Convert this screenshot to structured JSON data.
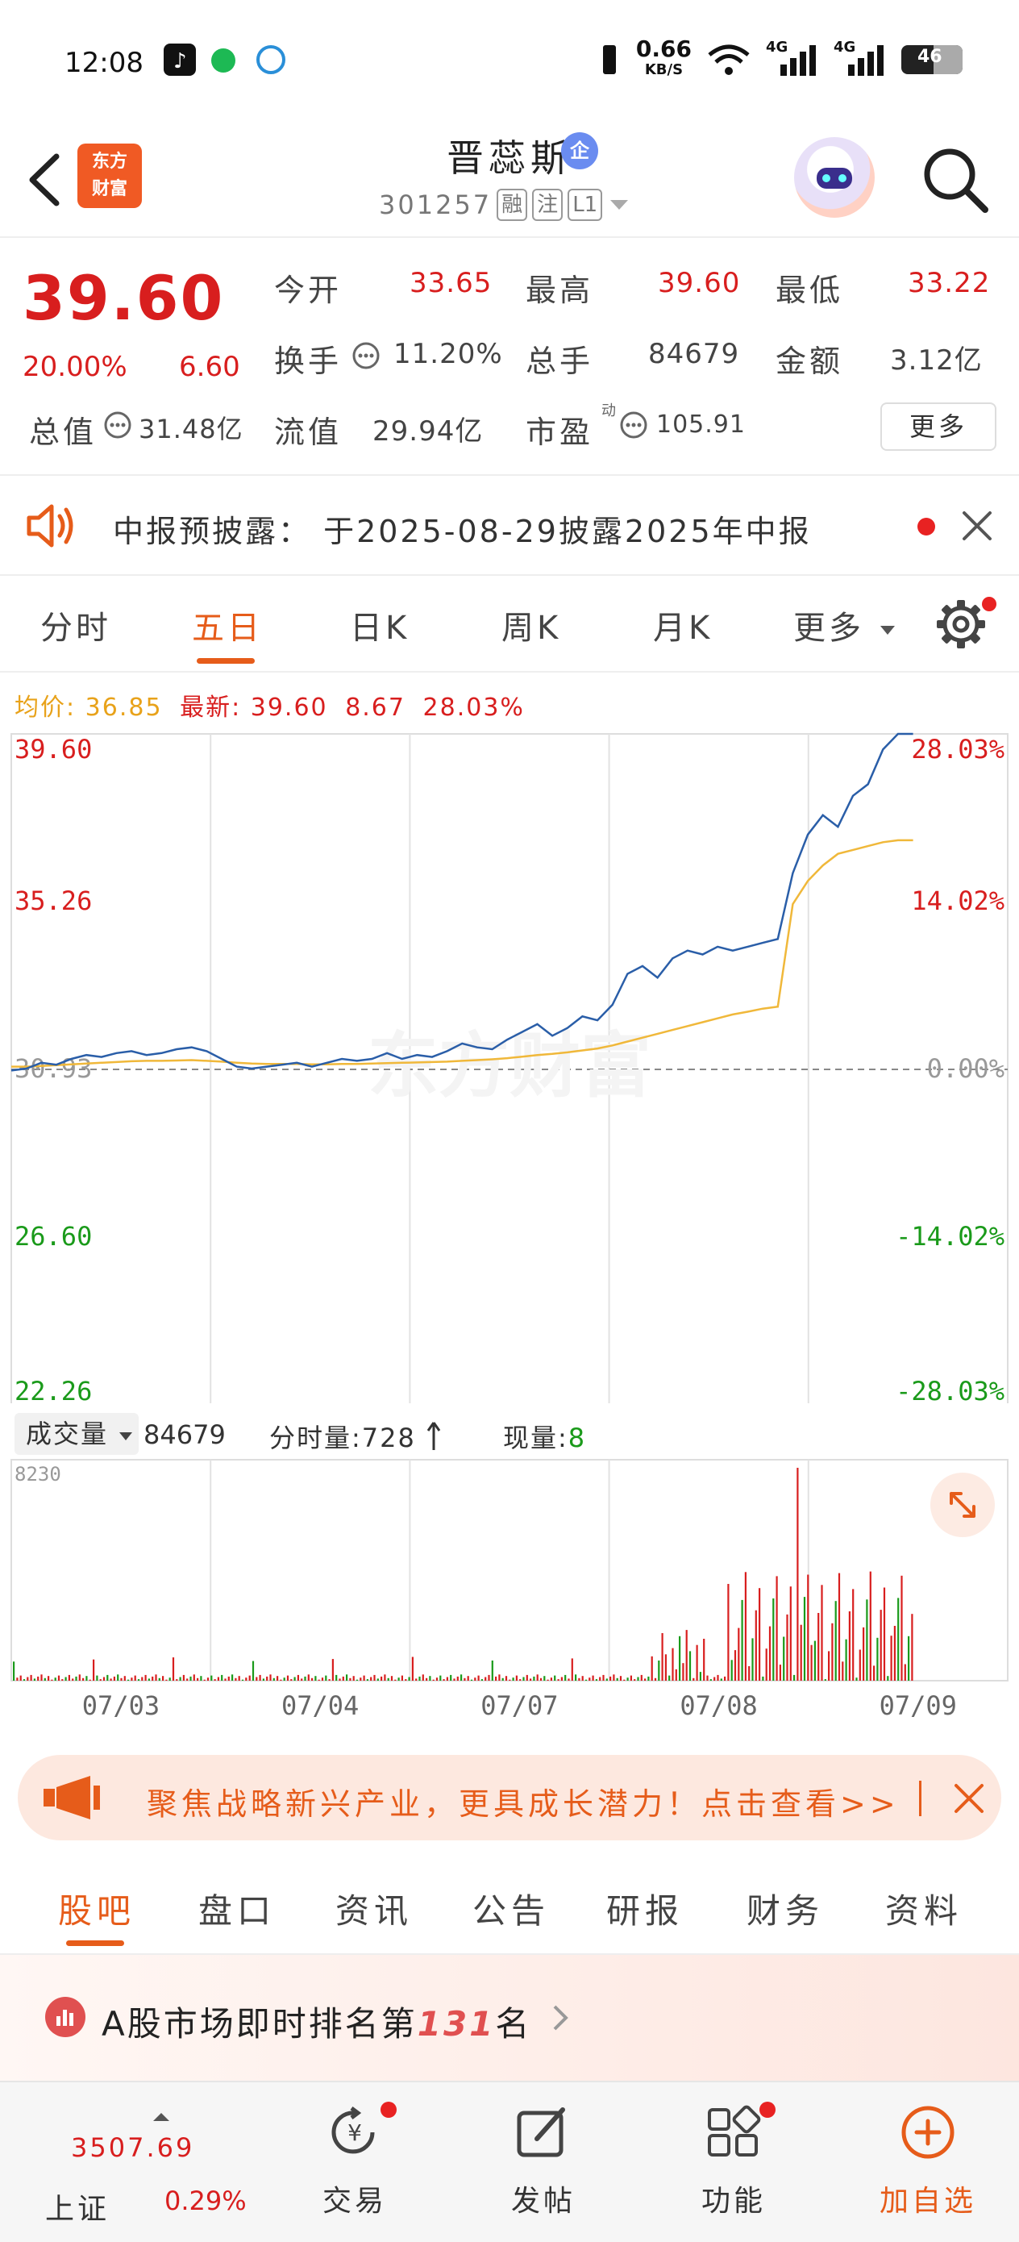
{
  "status_bar": {
    "time": "12:08",
    "net_speed": "0.66",
    "net_unit": "KB/S",
    "signal1": "4G",
    "signal2": "4G",
    "battery": "46"
  },
  "header": {
    "logo_line1": "东方",
    "logo_line2": "财富",
    "stock_name": "晋蕊斯",
    "badge": "企",
    "code": "301257",
    "tags": [
      "融",
      "注",
      "L1"
    ]
  },
  "quote": {
    "price": "39.60",
    "change_pct": "20.00%",
    "change": "6.60",
    "rows": [
      [
        {
          "label": "今开",
          "value": "33.65",
          "color": "red"
        },
        {
          "label": "最高",
          "value": "39.60",
          "color": "red"
        },
        {
          "label": "最低",
          "value": "33.22",
          "color": "red"
        }
      ],
      [
        {
          "label": "换手",
          "value": "11.20%",
          "color": "gray"
        },
        {
          "label": "总手",
          "value": "84679",
          "color": "gray"
        },
        {
          "label": "金额",
          "value": "3.12亿",
          "color": "gray"
        }
      ],
      [
        {
          "label": "总值",
          "value": "31.48亿",
          "color": "gray"
        },
        {
          "label": "流值",
          "value": "29.94亿",
          "color": "gray"
        },
        {
          "label": "市盈",
          "value": "105.91",
          "color": "gray"
        }
      ]
    ],
    "pe_sup": "动",
    "more": "更多"
  },
  "notice": {
    "text": "中报预披露： 于2025-08-29披露2025年中报"
  },
  "tabs": [
    "分时",
    "五日",
    "日K",
    "周K",
    "月K",
    "更多"
  ],
  "active_tab": "五日",
  "summary": {
    "avg_label": "均价:",
    "avg_value": "36.85",
    "latest_label": "最新:",
    "latest_value": "39.60",
    "chg": "8.67",
    "pct": "28.03%"
  },
  "chart_data": {
    "type": "line",
    "ylim": [
      22.26,
      39.6
    ],
    "y_ticks_left": [
      "39.60",
      "35.26",
      "30.93",
      "26.60",
      "22.26"
    ],
    "y_ticks_right": [
      "28.03%",
      "14.02%",
      "0.00%",
      "-14.02%",
      "-28.03%"
    ],
    "x_labels": [
      "07/03",
      "07/04",
      "07/07",
      "07/08",
      "07/09"
    ],
    "watermark": "东方财富",
    "series": [
      {
        "values": [
          30.9,
          30.95,
          31.1,
          31.05,
          31.2,
          31.3,
          31.25,
          31.35,
          31.4,
          31.3,
          31.35,
          31.45,
          31.5,
          31.4,
          31.2,
          31.0,
          30.95,
          31.0,
          31.05,
          31.1,
          31.0,
          31.1,
          31.2,
          31.15,
          31.2,
          31.35,
          31.2,
          31.3,
          31.25,
          31.4,
          31.6,
          31.5,
          31.45,
          31.7,
          31.9,
          32.1,
          31.8,
          32.0,
          32.3,
          32.2,
          32.6,
          33.4,
          33.6,
          33.3,
          33.8,
          34.0,
          33.9,
          34.1,
          34.0,
          34.1,
          34.2,
          34.3,
          36.0,
          37.0,
          37.5,
          37.2,
          38.0,
          38.3,
          39.2,
          39.6,
          39.6
        ]
      },
      {
        "values": [
          31.0,
          31.0,
          31.02,
          31.04,
          31.06,
          31.08,
          31.1,
          31.12,
          31.14,
          31.15,
          31.15,
          31.16,
          31.17,
          31.15,
          31.13,
          31.1,
          31.08,
          31.07,
          31.07,
          31.07,
          31.06,
          31.06,
          31.07,
          31.07,
          31.08,
          31.09,
          31.1,
          31.11,
          31.12,
          31.13,
          31.15,
          31.17,
          31.19,
          31.22,
          31.26,
          31.3,
          31.33,
          31.37,
          31.42,
          31.47,
          31.55,
          31.65,
          31.75,
          31.85,
          31.95,
          32.05,
          32.15,
          32.25,
          32.35,
          32.42,
          32.5,
          32.55,
          35.2,
          35.8,
          36.2,
          36.5,
          36.6,
          36.7,
          36.8,
          36.85,
          36.85
        ]
      }
    ]
  },
  "volume": {
    "selector": "成交量",
    "total": "84679",
    "fs_label": "分时量:",
    "fs_value": "728",
    "cur_label": "现量:",
    "cur_value": "8",
    "max_label": "8230"
  },
  "banner": {
    "text": "聚焦战略新兴产业，更具成长潜力！点击查看>>"
  },
  "sub_tabs": [
    "股吧",
    "盘口",
    "资讯",
    "公告",
    "研报",
    "财务",
    "资料"
  ],
  "active_sub_tab": "股吧",
  "rank": {
    "prefix": "A股市场即时排名第",
    "num": "131",
    "suffix": "名"
  },
  "bottom_nav": {
    "index_value": "3507.69",
    "index_name": "上证",
    "index_pct": "0.29%",
    "items": [
      "交易",
      "发帖",
      "功能",
      "加自选"
    ]
  }
}
